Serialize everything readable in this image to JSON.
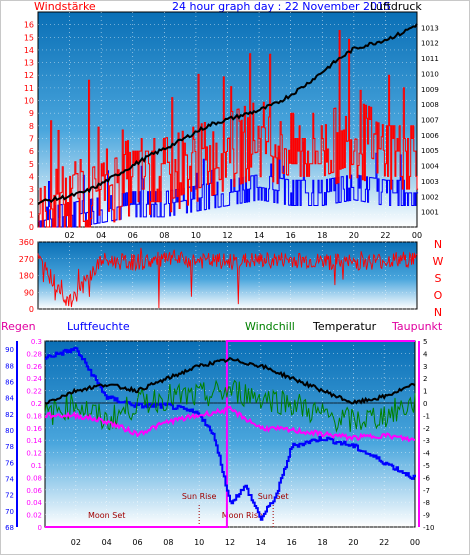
{
  "header": {
    "left_label": "Windstärke",
    "title": "24 hour graph day : 22 November 2015",
    "right_label": "Luftdruck"
  },
  "charts_legend": {
    "regen": "Regen",
    "luftfeuchte": "Luftfeuchte",
    "windchill": "Windchill",
    "temperatur": "Temperatur",
    "taupunkt": "Taupunkt"
  },
  "colors": {
    "wind_speed": "#ff0000",
    "wind_gust": "#0000ff",
    "pressure": "#000000",
    "direction": "#ff0000",
    "humidity": "#0000ff",
    "windchill": "#008000",
    "temperature": "#000000",
    "dewpoint": "#ff00ff",
    "rain": "#ff00ff",
    "bg_top": "#0a6fb6",
    "bg_bottom": "#ffffff"
  },
  "chart_data": [
    {
      "type": "line",
      "title": "24 hour graph day : 22 November 2015",
      "x_ticks": [
        "02",
        "04",
        "06",
        "08",
        "10",
        "12",
        "14",
        "16",
        "18",
        "20",
        "22",
        "00"
      ],
      "ylabel_left": "Windstärke",
      "ylabel_right": "Luftdruck",
      "ylim_left": [
        0,
        17
      ],
      "ylim_right": [
        1000,
        1014
      ],
      "y_ticks_left": [
        0,
        1,
        2,
        3,
        4,
        5,
        6,
        7,
        8,
        9,
        10,
        11,
        12,
        13,
        14,
        15,
        16
      ],
      "y_ticks_right": [
        1001,
        1002,
        1003,
        1004,
        1005,
        1006,
        1007,
        1008,
        1009,
        1010,
        1011,
        1012,
        1013
      ],
      "series": [
        {
          "name": "Windstärke",
          "axis": "left",
          "x": [
            0,
            2,
            4,
            6,
            8,
            10,
            12,
            14,
            16,
            18,
            20,
            22,
            24
          ],
          "values": [
            1,
            2,
            3,
            4,
            4,
            5,
            6,
            7,
            6,
            6,
            7,
            6,
            6
          ]
        },
        {
          "name": "Luftdruck",
          "axis": "right",
          "x": [
            0,
            1,
            2,
            3,
            4,
            5,
            6,
            7,
            8,
            9,
            10,
            11,
            12,
            13,
            14,
            15,
            16,
            17,
            18,
            19,
            20,
            21,
            22,
            23,
            24
          ],
          "values": [
            1001.6,
            1001.8,
            1002.0,
            1002.3,
            1002.8,
            1003.4,
            1004.0,
            1004.6,
            1005.1,
            1005.6,
            1006.2,
            1006.7,
            1007.0,
            1007.3,
            1007.6,
            1008.0,
            1008.6,
            1009.3,
            1010.1,
            1010.9,
            1011.6,
            1011.9,
            1012.2,
            1012.6,
            1013.2
          ]
        }
      ]
    },
    {
      "type": "line",
      "ylabel_right": [
        "N",
        "W",
        "S",
        "O",
        "N"
      ],
      "y_ticks_left": [
        0,
        90,
        180,
        270,
        360
      ],
      "ylim": [
        0,
        360
      ],
      "series": [
        {
          "name": "Windrichtung",
          "x": [
            0,
            2,
            4,
            6,
            8,
            10,
            12,
            14,
            16,
            18,
            20,
            22,
            24
          ],
          "values": [
            270,
            30,
            260,
            250,
            265,
            260,
            255,
            260,
            265,
            255,
            250,
            260,
            270
          ]
        }
      ]
    },
    {
      "type": "line",
      "y_ticks_left_regen": [
        0,
        0.02,
        0.04,
        0.06,
        0.08,
        0.1,
        0.12,
        0.14,
        0.16,
        0.18,
        0.2,
        0.22,
        0.24,
        0.26,
        0.28,
        0.3
      ],
      "y_ticks_left_humidity": [
        68,
        70,
        72,
        74,
        76,
        78,
        80,
        82,
        84,
        86,
        88,
        90
      ],
      "y_ticks_right": [
        5,
        4,
        3,
        2,
        1,
        0,
        -1,
        -2,
        -3,
        -4,
        -5,
        -6,
        -7,
        -8,
        -9,
        -10
      ],
      "ylim_regen": [
        0,
        0.3
      ],
      "ylim_humidity": [
        68,
        91
      ],
      "ylim_temp": [
        -10,
        5
      ],
      "annotations": [
        "Moon Set",
        "Sun Rise",
        "Sun Set",
        "Moon Rise",
        "Sun Set"
      ],
      "series": [
        {
          "name": "Luftfeuchte",
          "x": [
            0,
            2,
            4,
            6,
            8,
            10,
            11,
            12,
            13,
            14,
            15,
            16,
            18,
            20,
            22,
            24
          ],
          "values": [
            89,
            90,
            84,
            83,
            83,
            82,
            79,
            71,
            73,
            69,
            72,
            78,
            79,
            78,
            76,
            74
          ]
        },
        {
          "name": "Windchill",
          "x": [
            0,
            2,
            4,
            6,
            8,
            10,
            12,
            14,
            16,
            18,
            20,
            22,
            24
          ],
          "values": [
            -1,
            0,
            -1.5,
            0,
            0.5,
            0.5,
            1,
            0.5,
            0,
            -1,
            -1.5,
            -1,
            0
          ]
        },
        {
          "name": "Temperatur",
          "x": [
            0,
            2,
            4,
            6,
            8,
            10,
            12,
            14,
            16,
            18,
            20,
            22,
            24
          ],
          "values": [
            0,
            1,
            1.5,
            1,
            2,
            3,
            3.5,
            3,
            2,
            1,
            0,
            0.5,
            1.5
          ]
        },
        {
          "name": "Taupunkt",
          "x": [
            0,
            2,
            4,
            6,
            8,
            10,
            12,
            14,
            16,
            18,
            20,
            22,
            24
          ],
          "values": [
            -1,
            -1,
            -1.5,
            -2.5,
            -1.5,
            -1,
            -0.5,
            -2,
            -2.2,
            -2.5,
            -2.8,
            -2.6,
            -3
          ]
        },
        {
          "name": "Regen",
          "x": [
            0,
            11.8,
            11.9,
            24
          ],
          "values": [
            0,
            0,
            0.3,
            0.3
          ]
        }
      ]
    }
  ]
}
